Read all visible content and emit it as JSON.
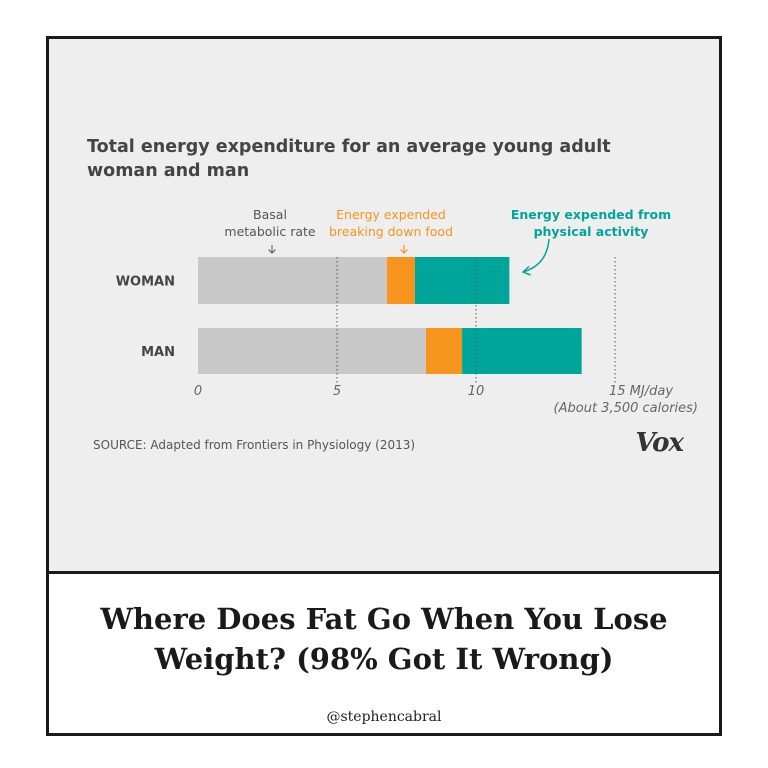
{
  "chart_data": {
    "type": "bar",
    "orientation": "horizontal",
    "stacked": true,
    "title": "Total energy expenditure for an average young adult woman and man",
    "categories": [
      "WOMAN",
      "MAN"
    ],
    "series": [
      {
        "name": "Basal metabolic rate",
        "values": [
          6.8,
          8.2
        ],
        "color": "#c8c8c8"
      },
      {
        "name": "Energy expended breaking down food",
        "values": [
          1.0,
          1.3
        ],
        "color": "#f7941d"
      },
      {
        "name": "Energy expended from physical activity",
        "values": [
          3.4,
          4.3
        ],
        "color": "#00a59a"
      }
    ],
    "xlim": [
      0,
      15
    ],
    "xticks": [
      "0",
      "5",
      "10",
      "15 MJ/day"
    ],
    "xtick_values": [
      0,
      5,
      10,
      15
    ],
    "xtick_note": "(About 3,500 calories)",
    "annotations": {
      "basal": "Basal\nmetabolic rate",
      "food": "Energy expended\nbreaking down food",
      "activity": "Energy expended from\nphysical activity"
    },
    "grid": "vertical dotted",
    "source": "SOURCE: Adapted from Frontiers in Physiology (2013)",
    "brand": "Vox"
  },
  "headline": "Where Does Fat Go When You Lose Weight? (98% Got It Wrong)",
  "handle": "@stephencabral"
}
